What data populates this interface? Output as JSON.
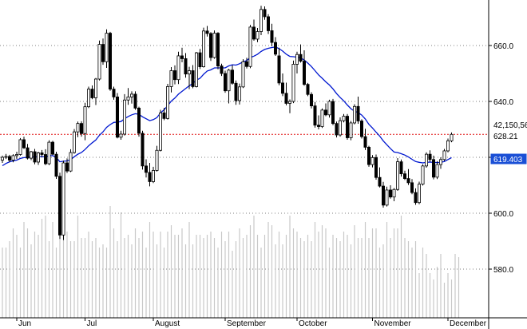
{
  "chart_data": {
    "type": "candlestick",
    "title": "",
    "xlabel": "",
    "ylabel": "",
    "ylim": [
      569,
      685
    ],
    "y_ticks": [
      580,
      600,
      620,
      640,
      660
    ],
    "y_tick_labels": [
      "580.0",
      "600.0",
      "620.0",
      "640.0",
      "660.0"
    ],
    "x_tick_labels": [
      "Jun",
      "Jul",
      "August",
      "September",
      "October",
      "November",
      "December"
    ],
    "x_tick_bar_index": [
      4,
      23,
      42,
      62,
      82,
      103,
      124
    ],
    "grid": "horizontal dotted",
    "series": [
      {
        "name": "",
        "kind": "candles",
        "ohlc": [
          [
            619.0,
            620.6,
            618.0,
            620.0
          ],
          [
            620.0,
            621.2,
            619.4,
            620.3
          ],
          [
            620.3,
            620.9,
            618.2,
            619.0
          ],
          [
            619.0,
            621.1,
            618.2,
            620.6
          ],
          [
            620.6,
            622.0,
            619.4,
            621.0
          ],
          [
            621.0,
            626.9,
            620.6,
            626.3
          ],
          [
            626.3,
            627.4,
            623.0,
            623.4
          ],
          [
            623.4,
            624.8,
            619.2,
            619.7
          ],
          [
            619.7,
            622.3,
            619.0,
            622.0
          ],
          [
            622.0,
            623.0,
            617.5,
            618.3
          ],
          [
            618.3,
            622.0,
            617.3,
            621.6
          ],
          [
            621.6,
            622.6,
            620.1,
            621.0
          ],
          [
            621.0,
            622.9,
            617.2,
            617.7
          ],
          [
            617.7,
            626.1,
            617.2,
            625.4
          ],
          [
            625.4,
            625.9,
            620.8,
            621.1
          ],
          [
            621.1,
            622.0,
            612.3,
            613.2
          ],
          [
            613.2,
            614.5,
            590.8,
            592.2
          ],
          [
            592.2,
            618.8,
            590.4,
            618.0
          ],
          [
            618.0,
            619.6,
            614.4,
            615.1
          ],
          [
            615.1,
            622.9,
            614.7,
            621.7
          ],
          [
            621.7,
            630.1,
            621.3,
            629.1
          ],
          [
            629.1,
            632.8,
            627.2,
            632.1
          ],
          [
            632.1,
            632.9,
            627.4,
            628.5
          ],
          [
            628.5,
            639.5,
            626.1,
            638.1
          ],
          [
            638.1,
            645.3,
            637.6,
            644.4
          ],
          [
            644.4,
            645.7,
            640.8,
            641.3
          ],
          [
            641.3,
            648.4,
            638.7,
            648.0
          ],
          [
            648.0,
            661.8,
            647.5,
            660.4
          ],
          [
            660.4,
            662.5,
            653.1,
            654.2
          ],
          [
            654.2,
            665.8,
            652.0,
            664.4
          ],
          [
            664.4,
            664.9,
            643.8,
            644.4
          ],
          [
            644.4,
            645.3,
            640.6,
            641.6
          ],
          [
            641.6,
            643.0,
            626.8,
            627.2
          ],
          [
            627.2,
            629.5,
            626.3,
            628.3
          ],
          [
            628.3,
            642.6,
            627.8,
            640.5
          ],
          [
            640.5,
            644.8,
            638.8,
            641.6
          ],
          [
            641.6,
            643.6,
            639.2,
            642.6
          ],
          [
            642.6,
            643.6,
            637.0,
            637.6
          ],
          [
            637.6,
            638.1,
            627.4,
            628.6
          ],
          [
            628.6,
            629.5,
            615.6,
            616.9
          ],
          [
            616.9,
            619.3,
            612.8,
            614.6
          ],
          [
            614.6,
            618.0,
            609.6,
            611.3
          ],
          [
            611.3,
            616.6,
            610.8,
            615.3
          ],
          [
            615.3,
            624.1,
            614.9,
            622.5
          ],
          [
            622.5,
            637.0,
            622.1,
            635.9
          ],
          [
            635.9,
            637.7,
            633.3,
            633.9
          ],
          [
            633.9,
            646.3,
            633.5,
            645.3
          ],
          [
            645.3,
            652.3,
            643.2,
            651.0
          ],
          [
            651.0,
            652.9,
            646.1,
            647.8
          ],
          [
            647.8,
            657.8,
            646.2,
            656.3
          ],
          [
            656.3,
            659.2,
            654.0,
            655.3
          ],
          [
            655.3,
            657.3,
            648.5,
            649.8
          ],
          [
            649.8,
            652.4,
            644.4,
            651.0
          ],
          [
            651.0,
            653.0,
            644.7,
            645.3
          ],
          [
            645.3,
            657.7,
            645.0,
            657.4
          ],
          [
            657.4,
            658.8,
            651.6,
            652.4
          ],
          [
            652.4,
            666.4,
            652.1,
            665.2
          ],
          [
            665.2,
            667.0,
            663.2,
            664.3
          ],
          [
            664.3,
            664.8,
            654.5,
            655.7
          ],
          [
            655.7,
            665.4,
            655.3,
            664.4
          ],
          [
            664.4,
            664.8,
            651.5,
            652.7
          ],
          [
            652.7,
            653.5,
            649.1,
            650.0
          ],
          [
            650.0,
            651.0,
            643.1,
            643.8
          ],
          [
            643.8,
            651.6,
            639.3,
            651.2
          ],
          [
            651.2,
            653.0,
            646.0,
            646.5
          ],
          [
            646.5,
            647.5,
            638.8,
            640.3
          ],
          [
            640.3,
            646.4,
            638.9,
            645.2
          ],
          [
            645.2,
            655.1,
            644.8,
            654.2
          ],
          [
            654.2,
            655.6,
            651.8,
            652.5
          ],
          [
            652.5,
            667.4,
            651.9,
            666.6
          ],
          [
            666.6,
            669.3,
            661.7,
            662.3
          ],
          [
            662.3,
            666.3,
            661.2,
            665.0
          ],
          [
            665.0,
            674.2,
            663.7,
            672.9
          ],
          [
            672.9,
            674.0,
            669.2,
            670.3
          ],
          [
            670.3,
            671.2,
            664.1,
            665.3
          ],
          [
            665.3,
            667.8,
            659.7,
            661.1
          ],
          [
            661.1,
            663.0,
            656.3,
            656.9
          ],
          [
            656.3,
            659.2,
            645.8,
            646.6
          ],
          [
            646.6,
            650.0,
            641.9,
            642.9
          ],
          [
            642.9,
            646.7,
            638.6,
            639.3
          ],
          [
            639.3,
            640.7,
            635.8,
            640.0
          ],
          [
            640.0,
            654.6,
            639.4,
            653.3
          ],
          [
            653.3,
            657.8,
            650.0,
            656.8
          ],
          [
            656.8,
            660.4,
            653.9,
            654.4
          ],
          [
            654.4,
            658.3,
            645.6,
            646.1
          ],
          [
            646.1,
            646.6,
            641.9,
            642.5
          ],
          [
            642.5,
            643.3,
            637.5,
            638.4
          ],
          [
            638.4,
            639.8,
            630.6,
            631.5
          ],
          [
            631.5,
            635.0,
            630.0,
            631.0
          ],
          [
            631.0,
            637.5,
            630.5,
            636.9
          ],
          [
            636.9,
            639.3,
            634.7,
            635.2
          ],
          [
            635.2,
            640.6,
            634.2,
            640.0
          ],
          [
            640.0,
            640.9,
            631.5,
            632.1
          ],
          [
            632.1,
            632.8,
            627.1,
            628.0
          ],
          [
            628.0,
            634.3,
            627.4,
            633.1
          ],
          [
            633.1,
            635.5,
            632.5,
            634.7
          ],
          [
            634.7,
            635.5,
            626.3,
            627.0
          ],
          [
            627.0,
            633.0,
            626.1,
            632.3
          ],
          [
            632.3,
            639.0,
            631.8,
            638.2
          ],
          [
            638.2,
            641.7,
            632.0,
            633.0
          ],
          [
            633.0,
            633.6,
            626.7,
            627.4
          ],
          [
            627.4,
            630.2,
            622.6,
            623.6
          ],
          [
            623.6,
            624.1,
            616.6,
            617.4
          ],
          [
            617.4,
            620.8,
            616.4,
            619.9
          ],
          [
            619.9,
            621.0,
            612.0,
            612.8
          ],
          [
            612.8,
            616.4,
            609.2,
            609.7
          ],
          [
            609.7,
            611.2,
            602.0,
            602.9
          ],
          [
            602.9,
            609.5,
            602.4,
            608.3
          ],
          [
            608.3,
            610.0,
            605.2,
            605.8
          ],
          [
            605.8,
            609.0,
            604.3,
            608.5
          ],
          [
            608.5,
            619.7,
            608.0,
            618.4
          ],
          [
            618.4,
            619.2,
            613.1,
            614.1
          ],
          [
            614.1,
            615.2,
            611.9,
            612.4
          ],
          [
            612.4,
            615.8,
            610.1,
            610.9
          ],
          [
            610.9,
            612.2,
            606.8,
            607.4
          ],
          [
            607.4,
            608.9,
            603.0,
            603.8
          ],
          [
            603.8,
            611.3,
            603.2,
            610.4
          ],
          [
            610.4,
            617.5,
            609.9,
            616.9
          ],
          [
            616.9,
            621.8,
            616.3,
            621.1
          ],
          [
            621.1,
            622.5,
            618.4,
            619.2
          ],
          [
            619.2,
            620.6,
            612.1,
            612.9
          ],
          [
            612.9,
            618.6,
            612.2,
            617.4
          ],
          [
            617.4,
            620.0,
            615.9,
            619.2
          ],
          [
            619.2,
            623.0,
            618.7,
            622.3
          ],
          [
            622.3,
            626.7,
            621.8,
            625.9
          ],
          [
            625.9,
            628.9,
            625.4,
            628.2
          ]
        ]
      },
      {
        "name": "",
        "kind": "moving-average",
        "values": [
          617.0,
          617.8,
          618.4,
          618.7,
          619.0,
          619.6,
          619.9,
          620.0,
          620.2,
          620.1,
          620.2,
          620.3,
          620.1,
          620.6,
          620.6,
          620.0,
          618.4,
          618.6,
          618.7,
          619.2,
          620.2,
          621.1,
          621.7,
          622.8,
          624.1,
          625.2,
          626.2,
          627.9,
          629.1,
          630.7,
          631.7,
          632.5,
          632.6,
          632.8,
          633.8,
          634.6,
          635.2,
          635.6,
          635.4,
          634.5,
          633.8,
          633.1,
          633.5,
          634.2,
          635.9,
          637.0,
          638.5,
          640.1,
          641.2,
          642.6,
          643.6,
          644.6,
          645.6,
          646.4,
          647.6,
          648.3,
          649.7,
          650.9,
          651.3,
          652.0,
          652.0,
          652.0,
          652.0,
          652.7,
          653.1,
          653.0,
          653.5,
          654.2,
          654.6,
          655.7,
          656.2,
          656.9,
          657.9,
          658.6,
          659.0,
          659.3,
          659.5,
          658.9,
          658.0,
          656.9,
          656.1,
          656.0,
          655.8,
          655.6,
          654.8,
          653.7,
          652.5,
          651.0,
          649.5,
          648.3,
          647.0,
          645.9,
          644.5,
          642.8,
          641.4,
          640.2,
          638.7,
          637.4,
          636.5,
          636.0,
          635.1,
          633.7,
          631.8,
          630.5,
          629.0,
          627.6,
          625.9,
          624.5,
          623.1,
          621.9,
          621.7,
          621.3,
          620.8,
          620.1,
          619.3,
          618.5,
          618.2,
          618.0,
          618.2,
          618.3,
          618.2,
          618.1,
          618.2,
          618.5,
          619.2,
          619.9
        ]
      },
      {
        "name": "",
        "kind": "volume",
        "values": [
          2.2,
          2.2,
          2.4,
          2.8,
          2.6,
          2.2,
          3.0,
          2.8,
          2.3,
          2.7,
          2.6,
          3.1,
          3.2,
          2.4,
          3.0,
          2.2,
          3.2,
          2.8,
          2.7,
          2.4,
          2.4,
          3.2,
          2.5,
          2.5,
          2.7,
          2.4,
          2.5,
          2.2,
          2.3,
          2.2,
          3.5,
          2.8,
          2.4,
          3.3,
          2.5,
          2.6,
          2.3,
          2.8,
          2.5,
          2.7,
          2.2,
          3.0,
          2.7,
          2.3,
          2.7,
          2.2,
          2.7,
          2.9,
          2.6,
          2.6,
          2.8,
          2.3,
          3.0,
          2.3,
          2.6,
          2.6,
          2.5,
          2.6,
          2.7,
          2.5,
          2.2,
          2.7,
          2.4,
          2.7,
          2.1,
          2.4,
          2.8,
          2.5,
          2.6,
          2.9,
          3.2,
          2.6,
          2.2,
          2.6,
          3.0,
          2.9,
          2.3,
          2.7,
          2.3,
          2.6,
          3.2,
          2.8,
          2.7,
          2.5,
          2.4,
          2.6,
          2.4,
          3.0,
          2.7,
          2.9,
          2.8,
          2.2,
          2.6,
          2.5,
          2.4,
          2.7,
          2.6,
          2.3,
          2.9,
          2.5,
          2.5,
          3.0,
          2.5,
          2.8,
          2.8,
          2.2,
          2.3,
          3.0,
          2.5,
          2.8,
          2.8,
          3.2,
          2.5,
          2.4,
          2.2,
          2.4,
          1.4,
          2.2,
          2.0,
          1.4,
          1.2,
          1.6,
          2.0,
          1.1,
          1.4,
          1.2,
          2.0,
          1.9
        ]
      }
    ],
    "tags": [
      {
        "label": "42,150,56",
        "style": "white"
      },
      {
        "label": "628.21",
        "style": "white-red-line"
      },
      {
        "label": "619.403",
        "style": "blue"
      }
    ],
    "reference_line": {
      "value": 628.21,
      "color": "#e01010"
    },
    "colors": {
      "candle": "#000000",
      "moving_average": "#0018d0",
      "volume": "#c8c8c8",
      "grid": "#808080",
      "reference": "#e01010",
      "tag_blue": "#1a4fd6"
    }
  }
}
